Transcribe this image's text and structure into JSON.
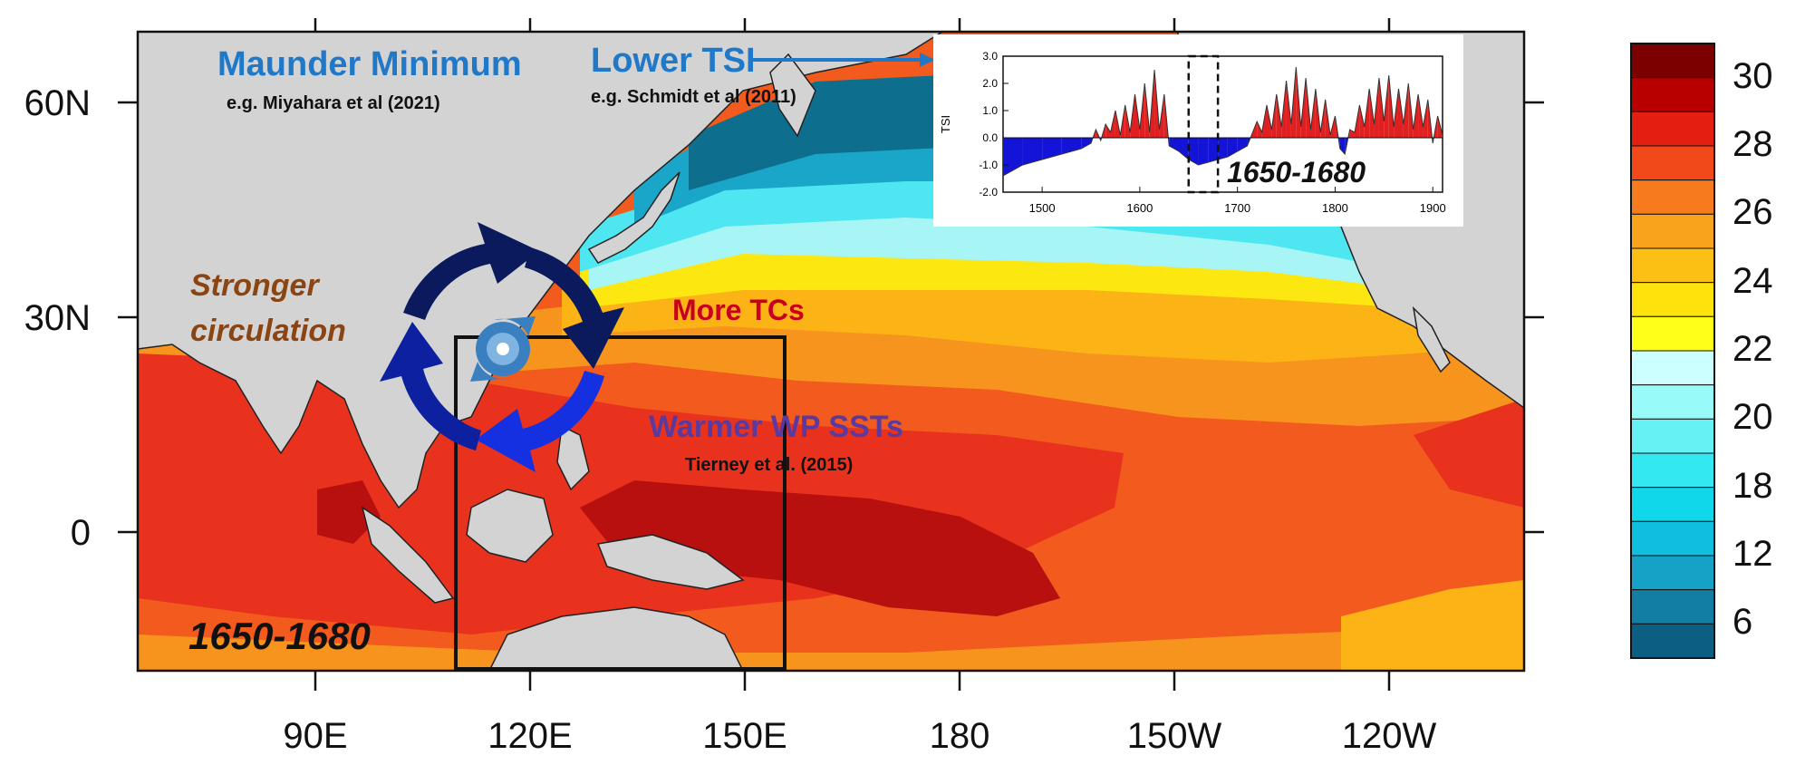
{
  "map": {
    "lat_labels": [
      "60N",
      "30N",
      "0"
    ],
    "lon_labels": [
      "90E",
      "120E",
      "150E",
      "180",
      "150W",
      "120W"
    ],
    "box_period": "1650-1680",
    "colors": {
      "land": "#d3d3d3",
      "deep_red": "#b80f0f",
      "red": "#e8321e",
      "orange_red": "#f25a1e",
      "orange": "#f7941d",
      "amber": "#fcb316",
      "yellow": "#fde711",
      "pale_cyan": "#a8f5f5",
      "cyan": "#4ee6f0",
      "teal": "#1aa6c8",
      "dark_teal": "#0d6e8e"
    }
  },
  "annotations": {
    "maunder_title": "Maunder Minimum",
    "maunder_cite": "e.g. Miyahara et al (2021)",
    "tsi_title": "Lower TSI",
    "tsi_cite": "e.g. Schmidt et al (2011)",
    "circulation_line1": "Stronger",
    "circulation_line2": "circulation",
    "tcs": "More TCs",
    "sst": "Warmer WP SSTs",
    "sst_cite": "Tierney et al. (2015)",
    "icons": [
      "cyclone-icon",
      "circular-arrows-icon",
      "arrow-right-icon"
    ]
  },
  "inset": {
    "ylabel": "TSI",
    "y_ticks": [
      "3.0",
      "2.0",
      "1.0",
      "0.0",
      "-1.0",
      "-2.0"
    ],
    "x_ticks": [
      "1500",
      "1600",
      "1700",
      "1800",
      "1900"
    ],
    "period_label": "1650-1680",
    "colors": {
      "positive": "#e02020",
      "negative": "#1414d8"
    }
  },
  "chart_data": {
    "type": "area",
    "title": "",
    "xlabel": "",
    "ylabel": "TSI",
    "xlim": [
      1460,
      1910
    ],
    "ylim": [
      -2.0,
      3.0
    ],
    "highlight_range": [
      1650,
      1680
    ],
    "x": [
      1460,
      1480,
      1500,
      1520,
      1540,
      1550,
      1555,
      1560,
      1565,
      1570,
      1575,
      1580,
      1585,
      1590,
      1595,
      1600,
      1605,
      1610,
      1615,
      1620,
      1625,
      1630,
      1640,
      1650,
      1660,
      1670,
      1680,
      1690,
      1700,
      1710,
      1720,
      1725,
      1730,
      1735,
      1740,
      1745,
      1750,
      1755,
      1760,
      1765,
      1770,
      1775,
      1780,
      1785,
      1790,
      1795,
      1800,
      1805,
      1810,
      1815,
      1820,
      1825,
      1830,
      1835,
      1840,
      1845,
      1850,
      1855,
      1860,
      1865,
      1870,
      1875,
      1880,
      1885,
      1890,
      1895,
      1900,
      1905,
      1910
    ],
    "y": [
      -1.4,
      -1.0,
      -0.8,
      -0.6,
      -0.4,
      -0.2,
      0.3,
      -0.1,
      0.5,
      0.2,
      1.0,
      0.1,
      1.2,
      0.2,
      1.6,
      0.3,
      2.0,
      0.2,
      2.5,
      0.3,
      1.6,
      -0.3,
      -0.5,
      -0.8,
      -1.0,
      -0.9,
      -0.8,
      -0.7,
      -0.5,
      -0.3,
      0.6,
      0.2,
      1.2,
      0.3,
      1.6,
      0.4,
      2.1,
      0.5,
      2.6,
      0.4,
      2.2,
      0.3,
      1.8,
      0.2,
      1.4,
      0.1,
      0.8,
      -0.4,
      -0.6,
      0.3,
      0.2,
      1.2,
      0.4,
      1.8,
      0.5,
      2.2,
      0.6,
      2.3,
      0.4,
      1.8,
      0.5,
      2.0,
      0.3,
      1.6,
      0.4,
      1.4,
      -0.2,
      0.8,
      0.1
    ]
  },
  "colorbar": {
    "labels": [
      "30",
      "28",
      "26",
      "24",
      "22",
      "20",
      "18",
      "12",
      "6"
    ],
    "colors": [
      "#7d0000",
      "#b80000",
      "#e41e10",
      "#f2491b",
      "#f77b1d",
      "#f9a31c",
      "#fcc015",
      "#fde20b",
      "#ffff1a",
      "#ccffff",
      "#99fafa",
      "#66f2f5",
      "#33e8f0",
      "#10d8ea",
      "#10bfe0",
      "#16a2c6",
      "#127ea3",
      "#0c5e82"
    ]
  }
}
